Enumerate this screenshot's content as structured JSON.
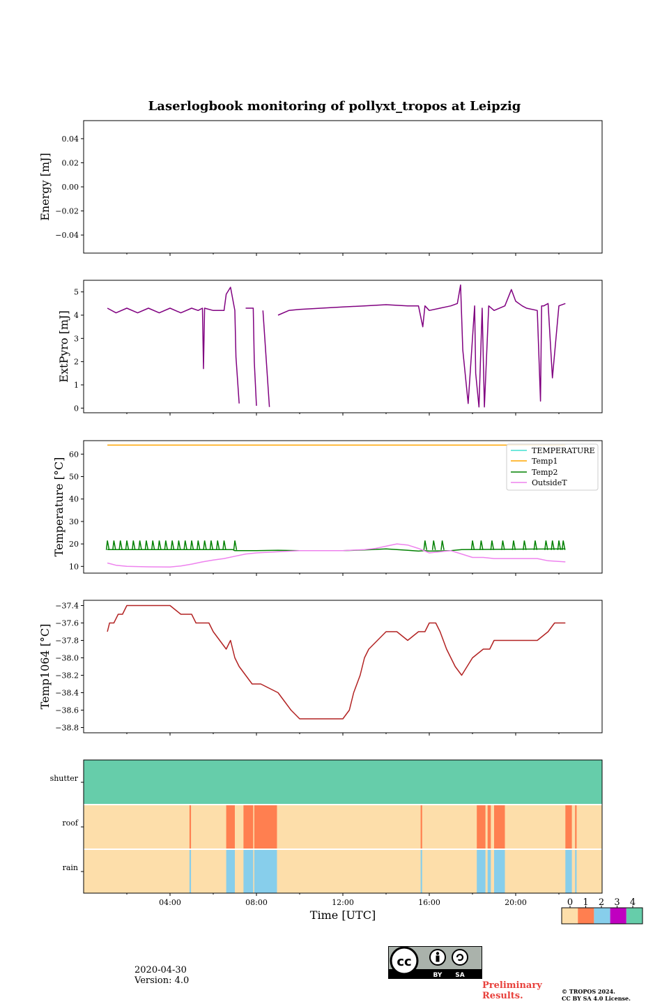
{
  "title": "Laserlogbook monitoring of pollyxt_tropos at Leipzig",
  "footer": {
    "date": "2020-04-30",
    "version": "Version: 4.0",
    "preliminary_line1": "Preliminary",
    "preliminary_line2": "Results.",
    "copyright_line1": "© TROPOS 2024.",
    "copyright_line2": "CC BY SA 4.0 License.",
    "cc_by": "BY",
    "cc_sa": "SA"
  },
  "chart_data": [
    {
      "type": "line",
      "name": "energy",
      "ylabel": "Energy [mJ]",
      "ylim": [
        -0.055,
        0.055
      ],
      "yticks": [
        0.04,
        0.02,
        0.0,
        -0.02,
        -0.04
      ],
      "ytick_labels": [
        "0.04",
        "0.02",
        "0.00",
        "−0.02",
        "−0.04"
      ],
      "series": []
    },
    {
      "type": "line",
      "name": "extpyro",
      "ylabel": "ExtPyro [mJ]",
      "ylim": [
        -0.2,
        5.5
      ],
      "yticks": [
        0,
        1,
        2,
        3,
        4,
        5
      ],
      "ytick_labels": [
        "0",
        "1",
        "2",
        "3",
        "4",
        "5"
      ],
      "series": [
        {
          "name": "ExtPyro",
          "color": "#800080",
          "x": [
            1.1,
            1.5,
            2.0,
            2.5,
            3.0,
            3.5,
            4.0,
            4.5,
            5.0,
            5.3,
            5.5,
            5.55,
            5.6,
            6.0,
            6.5,
            6.6,
            6.8,
            7.0,
            7.05,
            7.2,
            7.3,
            7.5,
            7.85,
            7.9,
            8.0,
            8.1,
            8.3,
            8.6
          ],
          "y": [
            4.3,
            4.1,
            4.3,
            4.1,
            4.3,
            4.1,
            4.3,
            4.1,
            4.3,
            4.2,
            4.3,
            1.7,
            4.3,
            4.2,
            4.2,
            4.9,
            5.2,
            4.2,
            2.2,
            0.2,
            null,
            4.3,
            4.3,
            2.0,
            0.1,
            null,
            4.2,
            0.05
          ]
        },
        {
          "name": "ExtPyro",
          "color": "#800080",
          "x": [
            9.0,
            9.5,
            10.0,
            11.0,
            12.0,
            13.0,
            14.0,
            15.0,
            15.5,
            15.7,
            15.8,
            16.0,
            16.5,
            17.0,
            17.3,
            17.45,
            17.55,
            17.8,
            18.1,
            18.15,
            18.3,
            18.45,
            18.55,
            18.75,
            19.0,
            19.5,
            19.8,
            20.0,
            20.3,
            20.5,
            21.0,
            21.15,
            21.2,
            21.3,
            21.5,
            21.7,
            22.0,
            22.3
          ],
          "y": [
            4.0,
            4.2,
            4.25,
            4.3,
            4.35,
            4.4,
            4.45,
            4.4,
            4.4,
            3.5,
            4.4,
            4.2,
            4.3,
            4.4,
            4.5,
            5.3,
            2.5,
            0.2,
            4.4,
            1.5,
            0.05,
            4.3,
            0.05,
            4.4,
            4.2,
            4.4,
            5.1,
            4.6,
            4.4,
            4.3,
            4.2,
            0.3,
            4.4,
            4.4,
            4.5,
            1.3,
            4.4,
            4.5
          ]
        }
      ]
    },
    {
      "type": "line",
      "name": "temperature",
      "ylabel": "Temperature [°C]",
      "ylim": [
        7,
        66
      ],
      "yticks": [
        10,
        20,
        30,
        40,
        50,
        60
      ],
      "ytick_labels": [
        "10",
        "20",
        "30",
        "40",
        "50",
        "60"
      ],
      "legend": [
        "TEMPERATURE",
        "Temp1",
        "Temp2",
        "OutsideT"
      ],
      "legend_location": "upper right",
      "series": [
        {
          "name": "TEMPERATURE",
          "color": "#40e0d0",
          "x": [],
          "y": []
        },
        {
          "name": "Temp1",
          "color": "#ffa500",
          "x": [
            1.1,
            22.3
          ],
          "y": [
            64,
            64
          ]
        },
        {
          "name": "Temp2",
          "color": "#008000",
          "x": [
            1.1,
            6.9,
            7.0,
            8.0,
            9.0,
            10.0,
            11.0,
            12.0,
            13.0,
            14.0,
            15.0,
            15.5,
            15.8,
            16.0,
            17.0,
            17.5,
            22.3
          ],
          "y": [
            17.5,
            17.5,
            17.0,
            17.0,
            17.2,
            17.0,
            17.0,
            17.0,
            17.3,
            17.8,
            17.2,
            16.8,
            17.0,
            16.8,
            17.0,
            17.5,
            17.8
          ],
          "spikes_x": [
            1.1,
            1.4,
            1.7,
            2.0,
            2.3,
            2.6,
            2.9,
            3.2,
            3.5,
            3.8,
            4.1,
            4.4,
            4.7,
            5.0,
            5.3,
            5.6,
            5.9,
            6.2,
            6.5,
            7.0,
            15.8,
            16.2,
            16.6,
            18.0,
            18.4,
            18.9,
            19.4,
            19.9,
            20.4,
            20.9,
            21.4,
            21.7,
            22.0,
            22.2
          ],
          "spike_top": 21.5
        },
        {
          "name": "OutsideT",
          "color": "#ee82ee",
          "x": [
            1.1,
            1.5,
            2.0,
            3.0,
            4.0,
            4.5,
            5.0,
            5.5,
            6.0,
            6.5,
            7.0,
            7.5,
            8.0,
            9.0,
            10.0,
            11.0,
            12.0,
            13.0,
            13.5,
            14.0,
            14.5,
            15.0,
            15.5,
            16.0,
            16.5,
            17.0,
            17.5,
            18.0,
            18.5,
            19.0,
            20.0,
            21.0,
            21.5,
            22.3
          ],
          "y": [
            11.5,
            10.5,
            10.0,
            9.8,
            9.7,
            10.2,
            11.0,
            12.0,
            12.8,
            13.5,
            14.5,
            15.5,
            16.0,
            16.5,
            17.0,
            17.0,
            17.0,
            17.5,
            18.0,
            19.0,
            20.0,
            19.5,
            18.0,
            16.0,
            16.5,
            17.0,
            15.5,
            14.0,
            14.0,
            13.5,
            13.5,
            13.5,
            12.5,
            12.0
          ]
        }
      ]
    },
    {
      "type": "line",
      "name": "temp1064",
      "ylabel": "Temp1064 [°C]",
      "ylim": [
        -38.86,
        -37.34
      ],
      "yticks": [
        -37.4,
        -37.6,
        -37.8,
        -38.0,
        -38.2,
        -38.4,
        -38.6,
        -38.8
      ],
      "ytick_labels": [
        "−37.4",
        "−37.6",
        "−37.8",
        "−38.0",
        "−38.2",
        "−38.4",
        "−38.6",
        "−38.8"
      ],
      "series": [
        {
          "name": "Temp1064",
          "color": "#b22222",
          "x": [
            1.1,
            1.2,
            1.4,
            1.6,
            1.8,
            2.0,
            2.4,
            3.0,
            3.5,
            4.0,
            4.5,
            5.0,
            5.2,
            5.5,
            5.8,
            6.0,
            6.3,
            6.6,
            6.8,
            7.0,
            7.2,
            7.5,
            7.8,
            8.0,
            8.2,
            9.0,
            9.3,
            9.6,
            10.0,
            10.5,
            11.0,
            11.5,
            12.0,
            12.3,
            12.5,
            12.8,
            13.0,
            13.2,
            13.6,
            14.0,
            14.5,
            15.0,
            15.5,
            15.8,
            16.0,
            16.3,
            16.5,
            16.8,
            17.0,
            17.2,
            17.5,
            18.0,
            18.5,
            18.8,
            19.0,
            19.5,
            20.0,
            20.5,
            21.0,
            21.5,
            21.8,
            22.0,
            22.3
          ],
          "y": [
            -37.7,
            -37.6,
            -37.6,
            -37.5,
            -37.5,
            -37.4,
            -37.4,
            -37.4,
            -37.4,
            -37.4,
            -37.5,
            -37.5,
            -37.6,
            -37.6,
            -37.6,
            -37.7,
            -37.8,
            -37.9,
            -37.8,
            -38.0,
            -38.1,
            -38.2,
            -38.3,
            -38.3,
            -38.3,
            -38.4,
            -38.5,
            -38.6,
            -38.7,
            -38.7,
            -38.7,
            -38.7,
            -38.7,
            -38.6,
            -38.4,
            -38.2,
            -38.0,
            -37.9,
            -37.8,
            -37.7,
            -37.7,
            -37.8,
            -37.7,
            -37.7,
            -37.6,
            -37.6,
            -37.7,
            -37.9,
            -38.0,
            -38.1,
            -38.2,
            -38.0,
            -37.9,
            -37.9,
            -37.8,
            -37.8,
            -37.8,
            -37.8,
            -37.8,
            -37.7,
            -37.6,
            -37.6,
            -37.6
          ]
        }
      ]
    },
    {
      "type": "heatmap",
      "name": "status",
      "rows": [
        "shutter",
        "roof",
        "rain"
      ],
      "xlabel": "Time [UTC]",
      "xlim": [
        0,
        24
      ],
      "xticks": [
        4,
        8,
        12,
        16,
        20
      ],
      "xtick_labels": [
        "04:00",
        "08:00",
        "12:00",
        "16:00",
        "20:00"
      ],
      "colorbar_ticks": [
        "0",
        "1",
        "2",
        "3",
        "4"
      ],
      "colors": [
        "#fddeaa",
        "#ff7f50",
        "#87ceeb",
        "#c000c0",
        "#66cdaa"
      ],
      "shutter_value": 4,
      "roof_value_1_intervals": [
        [
          4.9,
          4.97
        ],
        [
          6.6,
          7.0
        ],
        [
          7.4,
          7.85
        ],
        [
          7.9,
          8.95
        ],
        [
          15.6,
          15.67
        ],
        [
          18.2,
          18.6
        ],
        [
          18.7,
          18.85
        ],
        [
          19.0,
          19.5
        ],
        [
          22.3,
          22.6
        ],
        [
          22.75,
          22.82
        ]
      ],
      "rain_value_2_intervals": [
        [
          4.9,
          4.97
        ],
        [
          6.6,
          7.0
        ],
        [
          7.4,
          7.85
        ],
        [
          7.9,
          8.95
        ],
        [
          15.6,
          15.67
        ],
        [
          18.2,
          18.6
        ],
        [
          18.7,
          18.85
        ],
        [
          19.0,
          19.5
        ],
        [
          22.3,
          22.6
        ],
        [
          22.75,
          22.82
        ]
      ]
    }
  ]
}
